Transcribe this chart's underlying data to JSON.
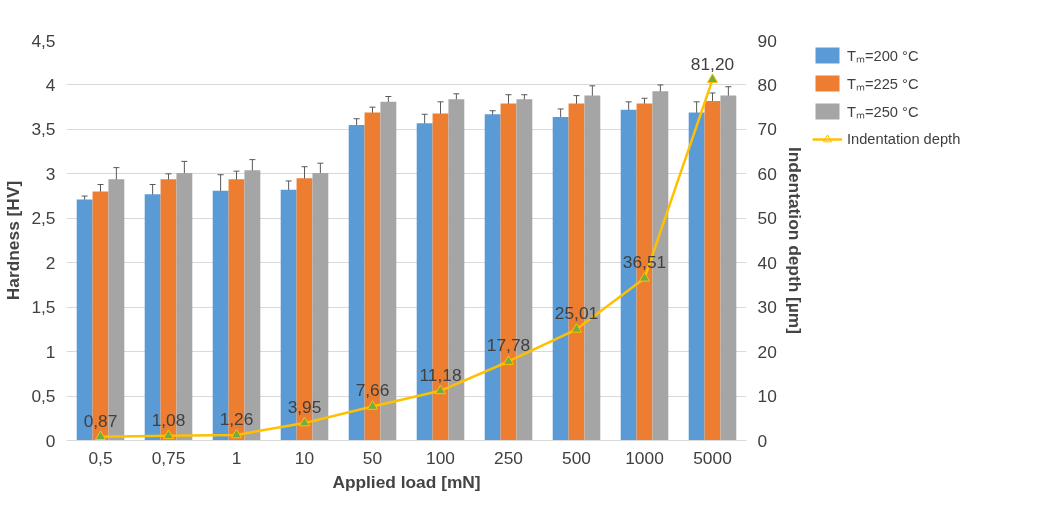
{
  "chart_data": {
    "type": "bar",
    "xlabel": "Applied load [mN]",
    "ylabel": "Hardness [HV]",
    "y2label": "Indentation depth [µm]",
    "categories": [
      "0,5",
      "0,75",
      "1",
      "10",
      "50",
      "100",
      "250",
      "500",
      "1000",
      "5000"
    ],
    "series": [
      {
        "name": "Tₘ=200 °C",
        "color": "#5b9bd5",
        "values": [
          2.71,
          2.77,
          2.81,
          2.82,
          3.55,
          3.57,
          3.67,
          3.64,
          3.72,
          3.69
        ],
        "errors": [
          0.04,
          0.11,
          0.18,
          0.1,
          0.07,
          0.1,
          0.04,
          0.09,
          0.09,
          0.12
        ]
      },
      {
        "name": "Tₘ=225 °C",
        "color": "#ed7d31",
        "values": [
          2.8,
          2.94,
          2.94,
          2.95,
          3.69,
          3.68,
          3.79,
          3.79,
          3.79,
          3.82
        ],
        "errors": [
          0.08,
          0.06,
          0.09,
          0.13,
          0.06,
          0.13,
          0.1,
          0.09,
          0.06,
          0.09
        ]
      },
      {
        "name": "Tₘ=250 °C",
        "color": "#a5a5a5",
        "values": [
          2.94,
          3.01,
          3.04,
          3.01,
          3.81,
          3.84,
          3.84,
          3.88,
          3.93,
          3.88
        ],
        "errors": [
          0.13,
          0.13,
          0.12,
          0.11,
          0.06,
          0.06,
          0.05,
          0.11,
          0.07,
          0.1
        ]
      },
      {
        "name": "Indentation depth",
        "type": "line",
        "axis": "y2",
        "color": "#ffc000",
        "marker": "triangle",
        "colors": [
          "#70ad47",
          "#70ad47",
          "#70ad47",
          "#70ad47",
          "#70ad47",
          "#70ad47",
          "#70ad47",
          "#70ad47",
          "#70ad47",
          "#70ad47"
        ],
        "values": [
          0.87,
          1.08,
          1.26,
          3.95,
          7.66,
          11.18,
          17.78,
          25.01,
          36.51,
          81.2
        ],
        "value_labels": [
          "0,87",
          "1,08",
          "1,26",
          "3,95",
          "7,66",
          "11,18",
          "17,78",
          "25,01",
          "36,51",
          "81,20"
        ]
      }
    ],
    "ylim": [
      0,
      4.5
    ],
    "yticks": [
      0,
      {
        "value": 0.5,
        "label": "0,5"
      },
      1,
      {
        "value": 1.5,
        "label": "1,5"
      },
      2,
      {
        "value": 2.5,
        "label": "2,5"
      },
      3,
      {
        "value": 3.5,
        "label": "3,5"
      },
      4,
      {
        "value": 4.5,
        "label": "4,5"
      }
    ],
    "y2lim": [
      0,
      90
    ],
    "y2ticks": [
      0,
      10,
      20,
      30,
      40,
      50,
      60,
      70,
      80,
      90
    ],
    "grid": "y",
    "legend": "top right"
  }
}
